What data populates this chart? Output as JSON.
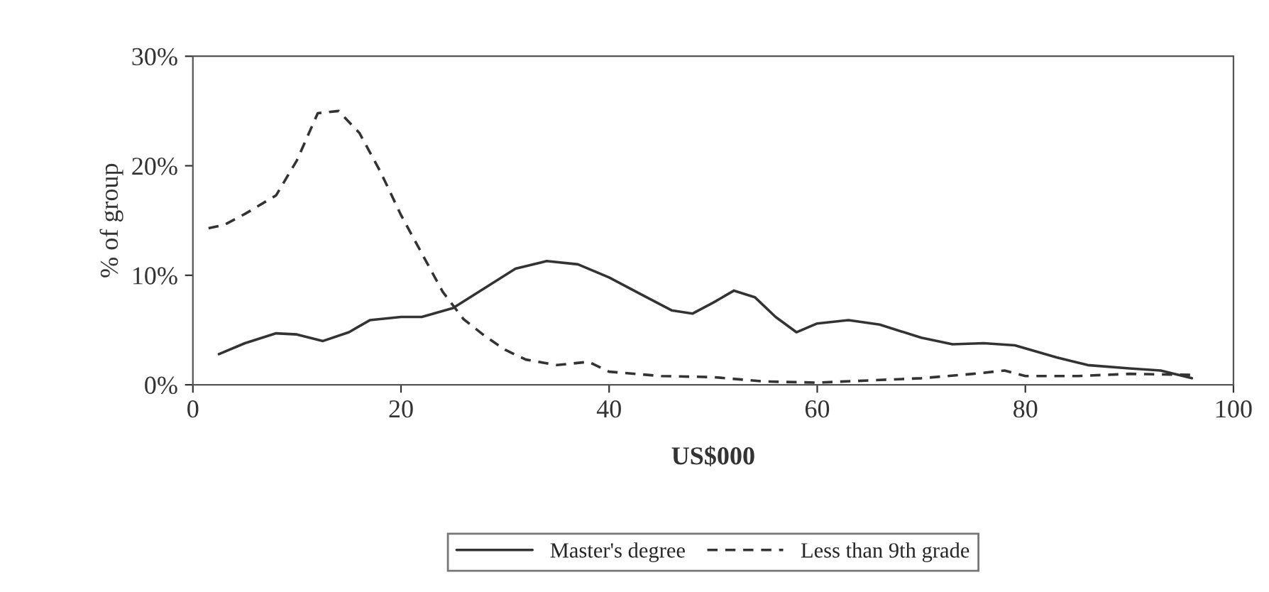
{
  "chart_data": {
    "type": "line",
    "xlabel": "US$000",
    "ylabel": "% of group",
    "xlim": [
      0,
      100
    ],
    "xticks": [
      0,
      20,
      40,
      60,
      80,
      100
    ],
    "ylim": [
      0,
      30
    ],
    "yticks": [
      {
        "value": 0,
        "label": "0%"
      },
      {
        "value": 10,
        "label": "10%"
      },
      {
        "value": 20,
        "label": "20%"
      },
      {
        "value": 30,
        "label": "30%"
      }
    ],
    "grid": false,
    "legend": "bottom",
    "series": [
      {
        "name": "Master's degree",
        "color": "#333333",
        "line_style": "solid",
        "x": [
          2.5,
          5,
          8,
          10,
          12.5,
          15,
          17,
          20,
          22,
          25,
          28,
          31,
          34,
          37,
          40,
          43,
          46,
          48,
          50,
          52,
          54,
          56,
          58,
          60,
          63,
          66,
          70,
          73,
          76,
          79,
          83,
          86,
          90,
          93,
          96
        ],
        "values": [
          2.8,
          3.8,
          4.7,
          4.6,
          4.0,
          4.8,
          5.9,
          6.2,
          6.2,
          7.0,
          8.8,
          10.6,
          11.3,
          11.0,
          9.8,
          8.3,
          6.8,
          6.5,
          7.5,
          8.6,
          8.0,
          6.2,
          4.8,
          5.6,
          5.9,
          5.5,
          4.3,
          3.7,
          3.8,
          3.6,
          2.5,
          1.8,
          1.5,
          1.3,
          0.6
        ]
      },
      {
        "name": "Less than 9th grade",
        "color": "#333333",
        "line_style": "dashed",
        "x": [
          1.5,
          3,
          5,
          8,
          10,
          12,
          14,
          16,
          18,
          20,
          22,
          24,
          26,
          28,
          30,
          32,
          35,
          38,
          40,
          45,
          50,
          55,
          60,
          65,
          70,
          75,
          78,
          80,
          85,
          90,
          96
        ],
        "values": [
          14.3,
          14.6,
          15.6,
          17.3,
          20.5,
          24.8,
          25.0,
          23.0,
          19.5,
          15.5,
          12.0,
          8.5,
          6.0,
          4.5,
          3.2,
          2.3,
          1.8,
          2.1,
          1.2,
          0.8,
          0.7,
          0.3,
          0.2,
          0.4,
          0.6,
          1.0,
          1.3,
          0.8,
          0.8,
          1.0,
          0.9
        ]
      }
    ]
  }
}
